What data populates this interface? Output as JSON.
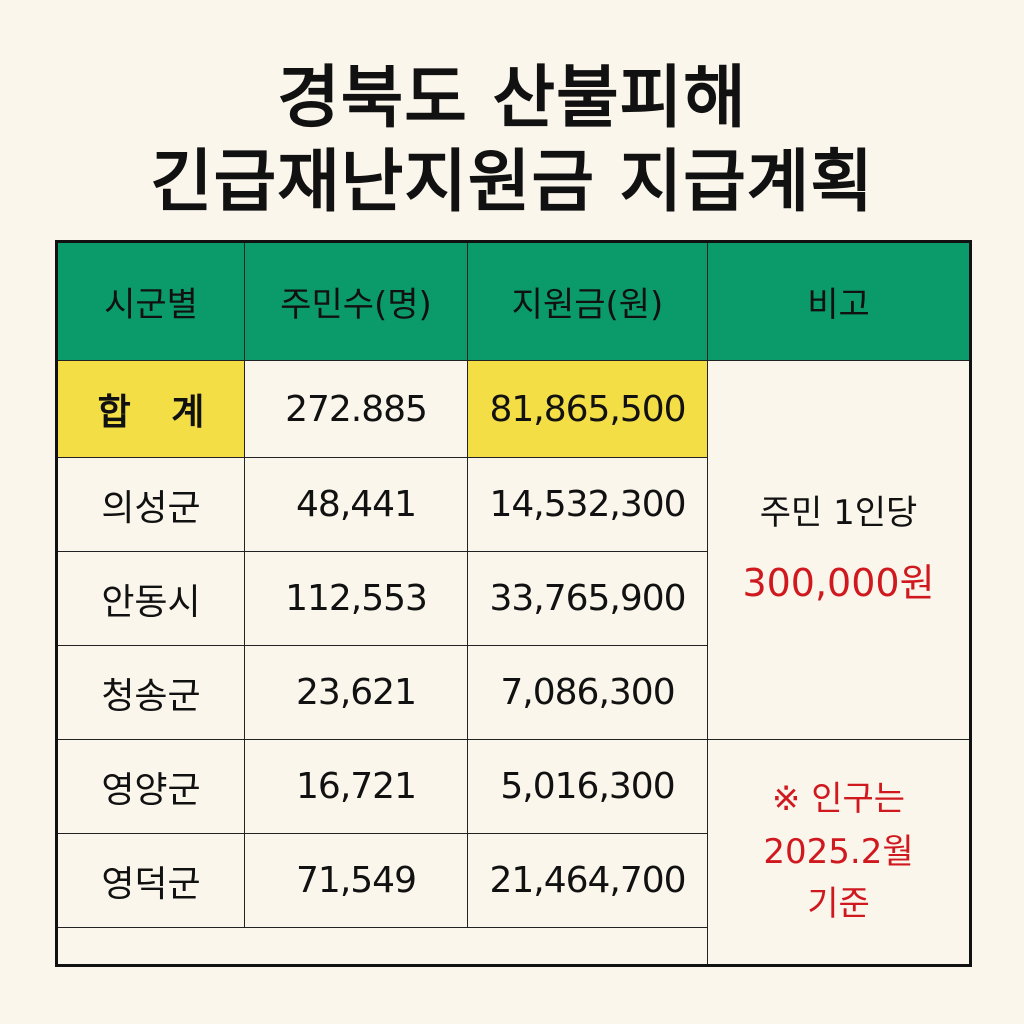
{
  "title": {
    "line1": "경북도 산불피해",
    "line2": "긴급재난지원금 지급계획"
  },
  "table": {
    "headers": [
      "시군별",
      "주민수(명)",
      "지원금(원)",
      "비고"
    ],
    "total": {
      "region": "합 계",
      "residents": "272.885",
      "amount": "81,865,500"
    },
    "rows": [
      {
        "region": "의성군",
        "residents": "48,441",
        "amount": "14,532,300"
      },
      {
        "region": "안동시",
        "residents": "112,553",
        "amount": "33,765,900"
      },
      {
        "region": "청송군",
        "residents": "23,621",
        "amount": "7,086,300"
      },
      {
        "region": "영양군",
        "residents": "16,721",
        "amount": "5,016,300"
      },
      {
        "region": "영덕군",
        "residents": "71,549",
        "amount": "21,464,700"
      }
    ],
    "note_top": {
      "line1": "주민 1인당",
      "line2": "300,000원"
    },
    "note_bottom": {
      "line1": "※ 인구는",
      "line2": "2025.2월",
      "line3": "기준"
    }
  },
  "colors": {
    "header_bg": "#0b9a6a",
    "highlight": "#f3de45",
    "accent_red": "#d0191f",
    "background": "#faf6ec"
  }
}
